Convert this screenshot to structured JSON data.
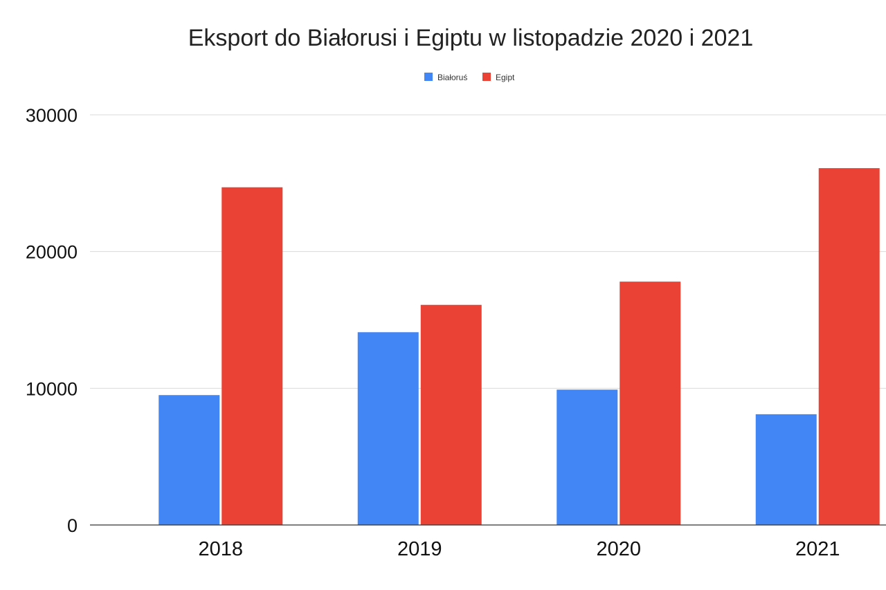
{
  "chart_data": {
    "type": "bar",
    "title": "Eksport do Białorusi i Egiptu w listopadzie 2020 i 2021",
    "xlabel": "",
    "ylabel": "",
    "categories": [
      "2018",
      "2019",
      "2020",
      "2021"
    ],
    "series": [
      {
        "name": "Białoruś",
        "color": "#4285f4",
        "values": [
          9500,
          14100,
          9900,
          8100
        ]
      },
      {
        "name": "Egipt",
        "color": "#ea4335",
        "values": [
          24700,
          16100,
          17800,
          26100
        ]
      }
    ],
    "ylim": [
      0,
      30000
    ],
    "yticks": [
      "0",
      "10000",
      "20000",
      "30000"
    ],
    "grid": true,
    "legend_position": "top-center"
  }
}
